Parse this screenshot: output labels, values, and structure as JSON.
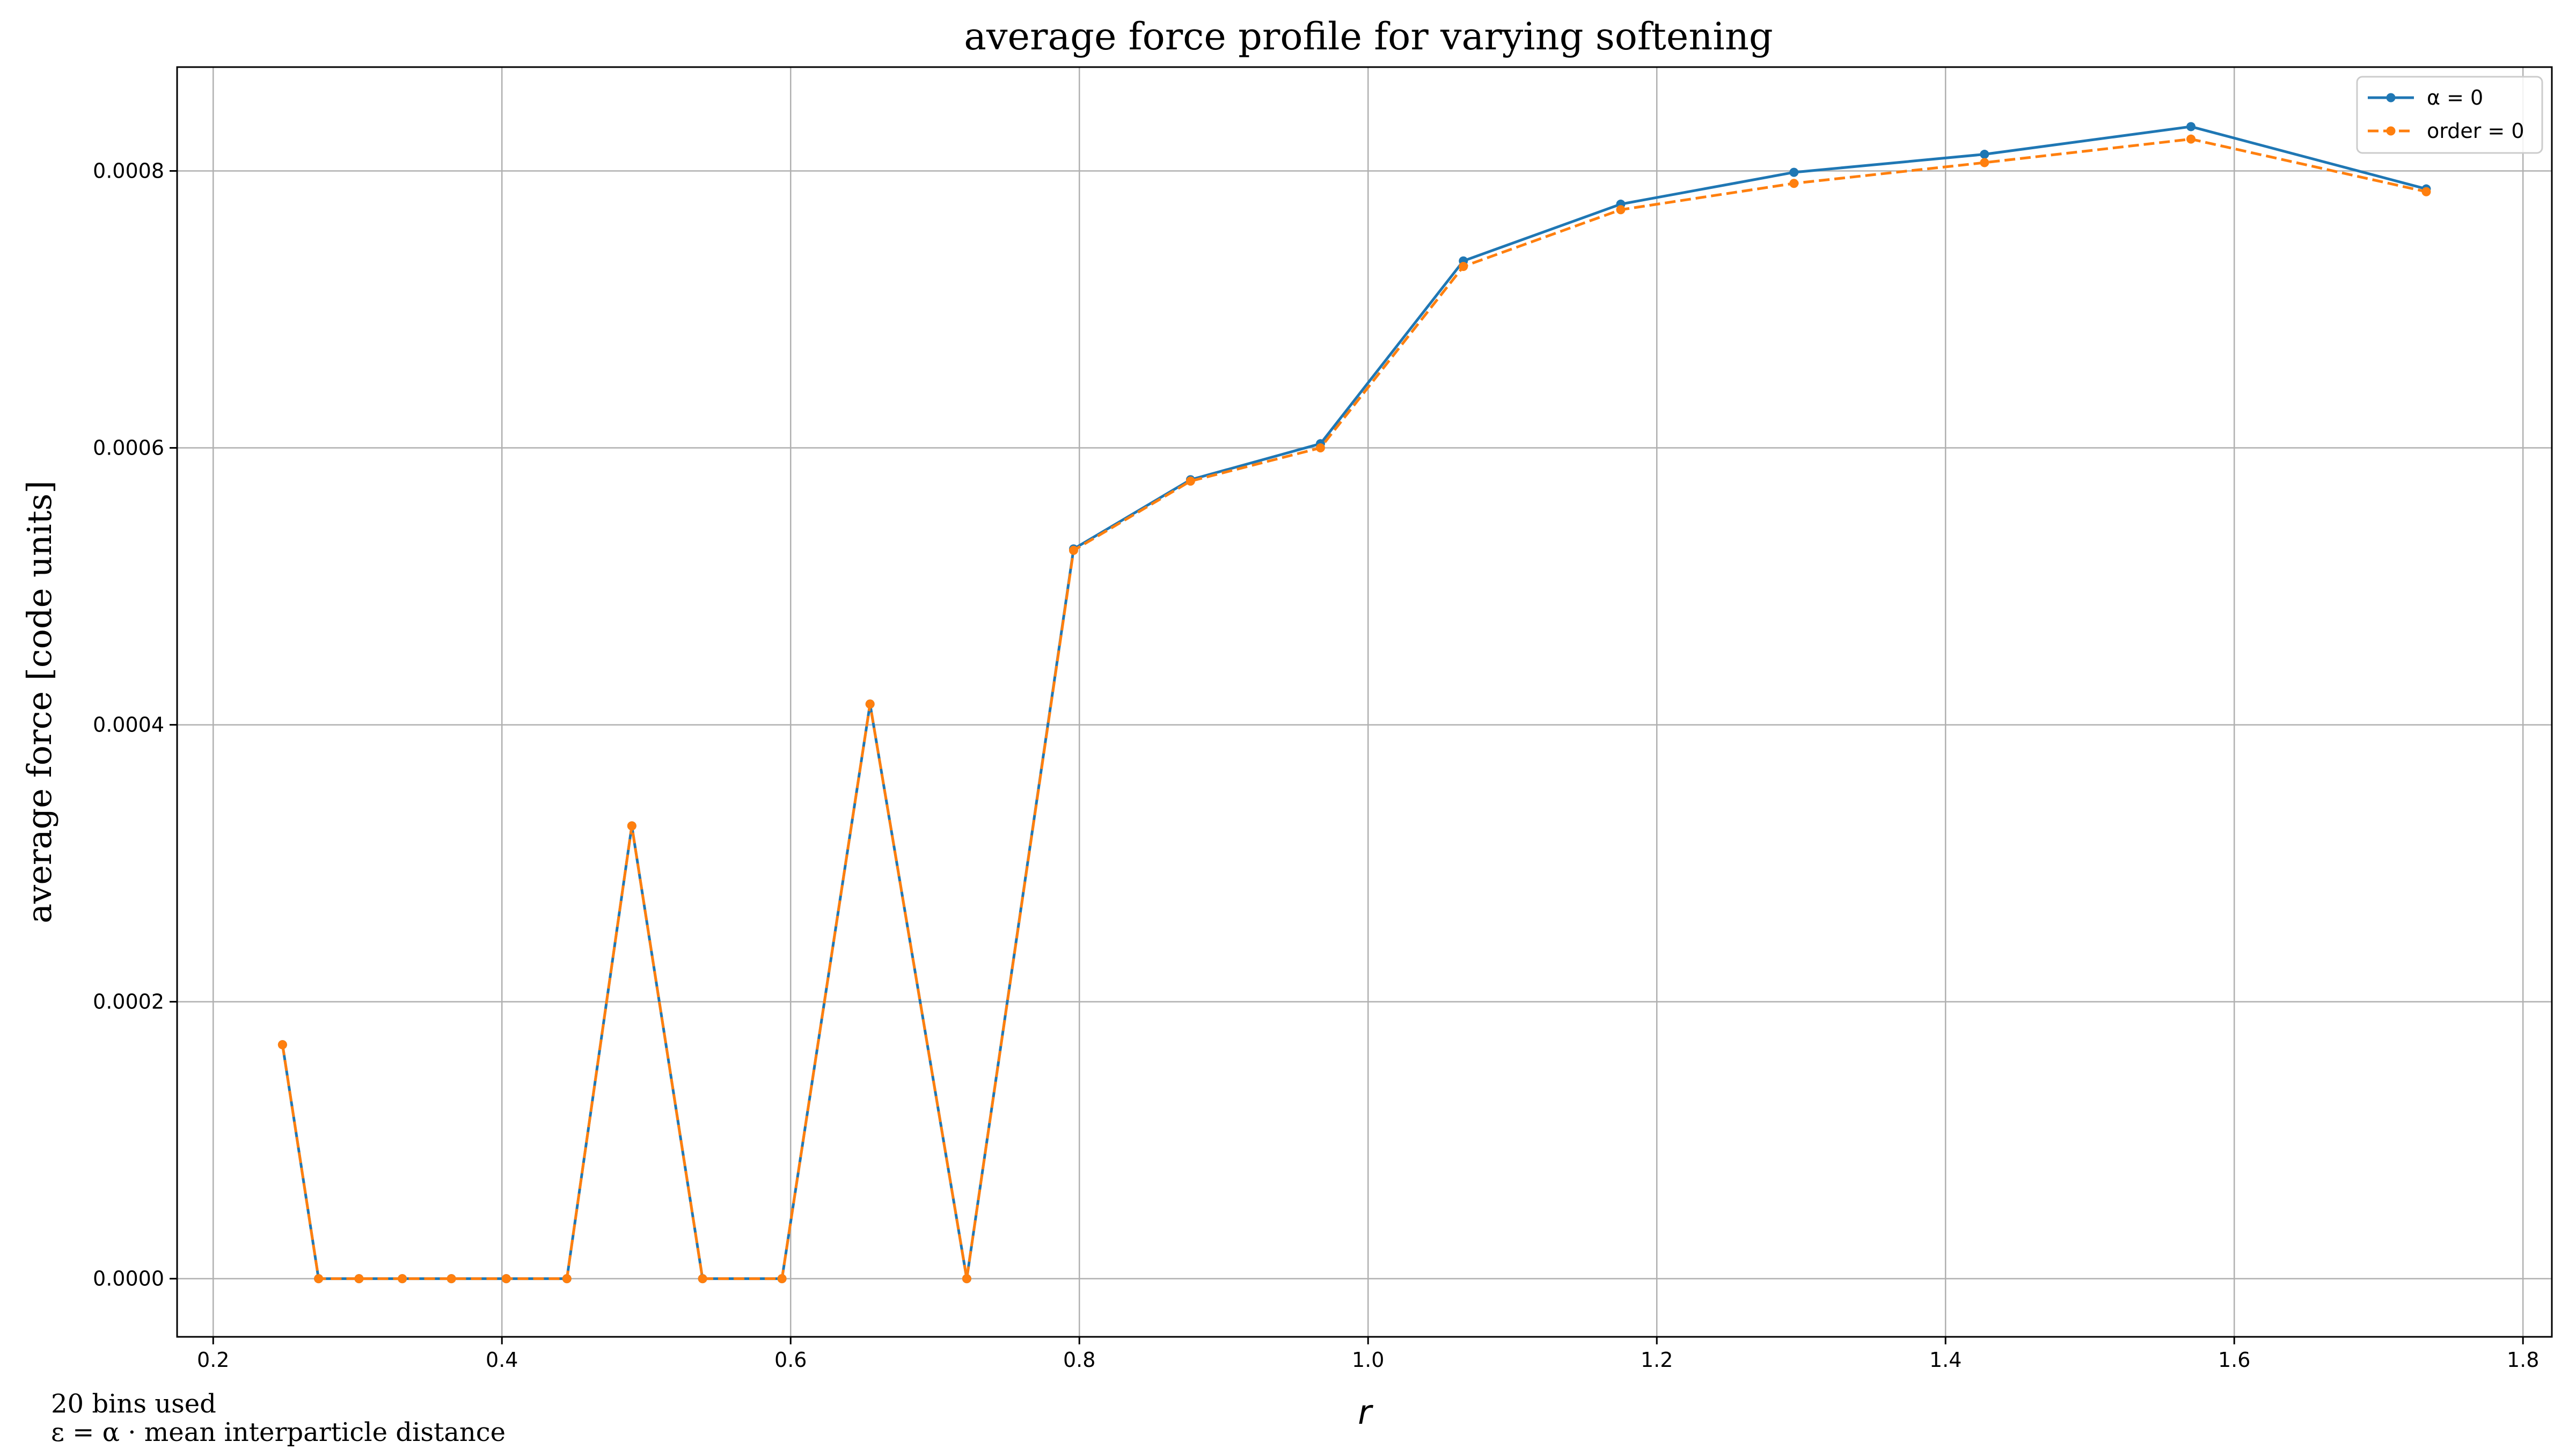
{
  "colors": {
    "series_1": "#1f77b4",
    "series_2": "#ff7f0e",
    "grid": "#b0b0b0",
    "axes": "#000000"
  },
  "notes": {
    "line_1": "20 bins used",
    "line_2": "ε = α ·  mean interparticle distance"
  },
  "chart_data": {
    "type": "line",
    "title": "average force profile for varying softening",
    "xlabel": "r",
    "ylabel": "average force [code units]",
    "xlim": [
      0.175,
      1.82
    ],
    "ylim": [
      -4.2e-05,
      0.000875
    ],
    "grid": true,
    "legend_position": "upper right",
    "x_ticks": [
      0.2,
      0.4,
      0.6,
      0.8,
      1.0,
      1.2,
      1.4,
      1.6,
      1.8
    ],
    "x_tick_labels": [
      "0.2",
      "0.4",
      "0.6",
      "0.8",
      "1.0",
      "1.2",
      "1.4",
      "1.6",
      "1.8"
    ],
    "y_ticks": [
      0.0,
      0.0002,
      0.0004,
      0.0006,
      0.0008
    ],
    "y_tick_labels": [
      "0.0000",
      "0.0002",
      "0.0004",
      "0.0006",
      "0.0008"
    ],
    "series": [
      {
        "name": "α =  0",
        "style": "solid",
        "x": [
          0.248,
          0.273,
          0.301,
          0.331,
          0.365,
          0.403,
          0.445,
          0.49,
          0.539,
          0.594,
          0.655,
          0.722,
          0.796,
          0.877,
          0.967,
          1.066,
          1.175,
          1.295,
          1.427,
          1.57,
          1.733
        ],
        "y": [
          0.000169,
          0.0,
          0.0,
          0.0,
          0.0,
          0.0,
          0.0,
          0.000327,
          0.0,
          0.0,
          0.000415,
          0.0,
          0.000527,
          0.000577,
          0.000603,
          0.000735,
          0.000776,
          0.000799,
          0.000812,
          0.000832,
          0.000787
        ]
      },
      {
        "name": "order = 0",
        "style": "dashed",
        "x": [
          0.248,
          0.273,
          0.301,
          0.331,
          0.365,
          0.403,
          0.445,
          0.49,
          0.539,
          0.594,
          0.655,
          0.722,
          0.796,
          0.877,
          0.967,
          1.066,
          1.175,
          1.295,
          1.427,
          1.57,
          1.733
        ],
        "y": [
          0.000169,
          0.0,
          0.0,
          0.0,
          0.0,
          0.0,
          0.0,
          0.000327,
          0.0,
          0.0,
          0.000415,
          0.0,
          0.000526,
          0.000576,
          0.0006,
          0.000731,
          0.000772,
          0.000791,
          0.000806,
          0.000823,
          0.000785
        ]
      }
    ]
  }
}
